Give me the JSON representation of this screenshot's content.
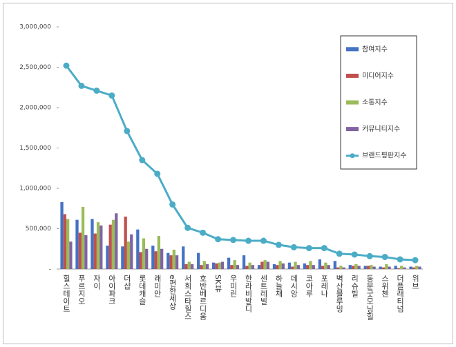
{
  "chart_data": {
    "type": "bar_line",
    "categories": [
      "힐스테이트",
      "푸르지오",
      "자이",
      "아이파크",
      "더샵",
      "롯데캐슬",
      "래미안",
      "e편한세상",
      "서희스타힐스",
      "호반베르디움",
      "SK뷰",
      "우미린",
      "한라비발디",
      "센트레빌",
      "하늘채",
      "데시앙",
      "코아루",
      "포레나",
      "벽산블루밍",
      "리슈빌",
      "동문굿모닝힐",
      "스위첸",
      "더플래티넘",
      "위브"
    ],
    "series": [
      {
        "name": "참여지수",
        "type": "bar",
        "color": "#4472c4",
        "values": [
          830000,
          610000,
          620000,
          290000,
          280000,
          490000,
          290000,
          200000,
          280000,
          200000,
          80000,
          140000,
          170000,
          50000,
          60000,
          80000,
          70000,
          120000,
          100000,
          50000,
          40000,
          30000,
          40000,
          30000
        ]
      },
      {
        "name": "미디어지수",
        "type": "bar",
        "color": "#c0504d",
        "values": [
          680000,
          450000,
          440000,
          550000,
          650000,
          210000,
          220000,
          170000,
          60000,
          50000,
          70000,
          50000,
          40000,
          90000,
          50000,
          30000,
          50000,
          40000,
          20000,
          40000,
          40000,
          20000,
          10000,
          20000
        ]
      },
      {
        "name": "소통지수",
        "type": "bar",
        "color": "#9bbb59",
        "values": [
          620000,
          770000,
          580000,
          610000,
          340000,
          380000,
          410000,
          240000,
          90000,
          100000,
          80000,
          110000,
          80000,
          110000,
          100000,
          90000,
          100000,
          80000,
          40000,
          60000,
          50000,
          60000,
          40000,
          40000
        ]
      },
      {
        "name": "커뮤니티지수",
        "type": "bar",
        "color": "#8064a2",
        "values": [
          340000,
          420000,
          540000,
          690000,
          430000,
          250000,
          250000,
          170000,
          60000,
          60000,
          90000,
          50000,
          50000,
          90000,
          70000,
          50000,
          50000,
          50000,
          20000,
          40000,
          30000,
          30000,
          20000,
          30000
        ]
      },
      {
        "name": "브랜드평판지수",
        "type": "line",
        "color": "#4bacc6",
        "values": [
          2520000,
          2270000,
          2210000,
          2150000,
          1710000,
          1350000,
          1180000,
          800000,
          510000,
          450000,
          370000,
          360000,
          350000,
          350000,
          300000,
          270000,
          260000,
          260000,
          190000,
          180000,
          160000,
          150000,
          120000,
          110000
        ]
      }
    ],
    "ylim": [
      0,
      3000000
    ],
    "yticks": [
      {
        "value": 0,
        "label": "-"
      },
      {
        "value": 500000,
        "label": "500,000"
      },
      {
        "value": 1000000,
        "label": "1,000,000"
      },
      {
        "value": 1500000,
        "label": "1,500,000"
      },
      {
        "value": 2000000,
        "label": "2,000,000"
      },
      {
        "value": 2500000,
        "label": "2,500,000"
      },
      {
        "value": 3000000,
        "label": "3,000,000"
      }
    ],
    "grid": false,
    "legend": "upper right"
  }
}
